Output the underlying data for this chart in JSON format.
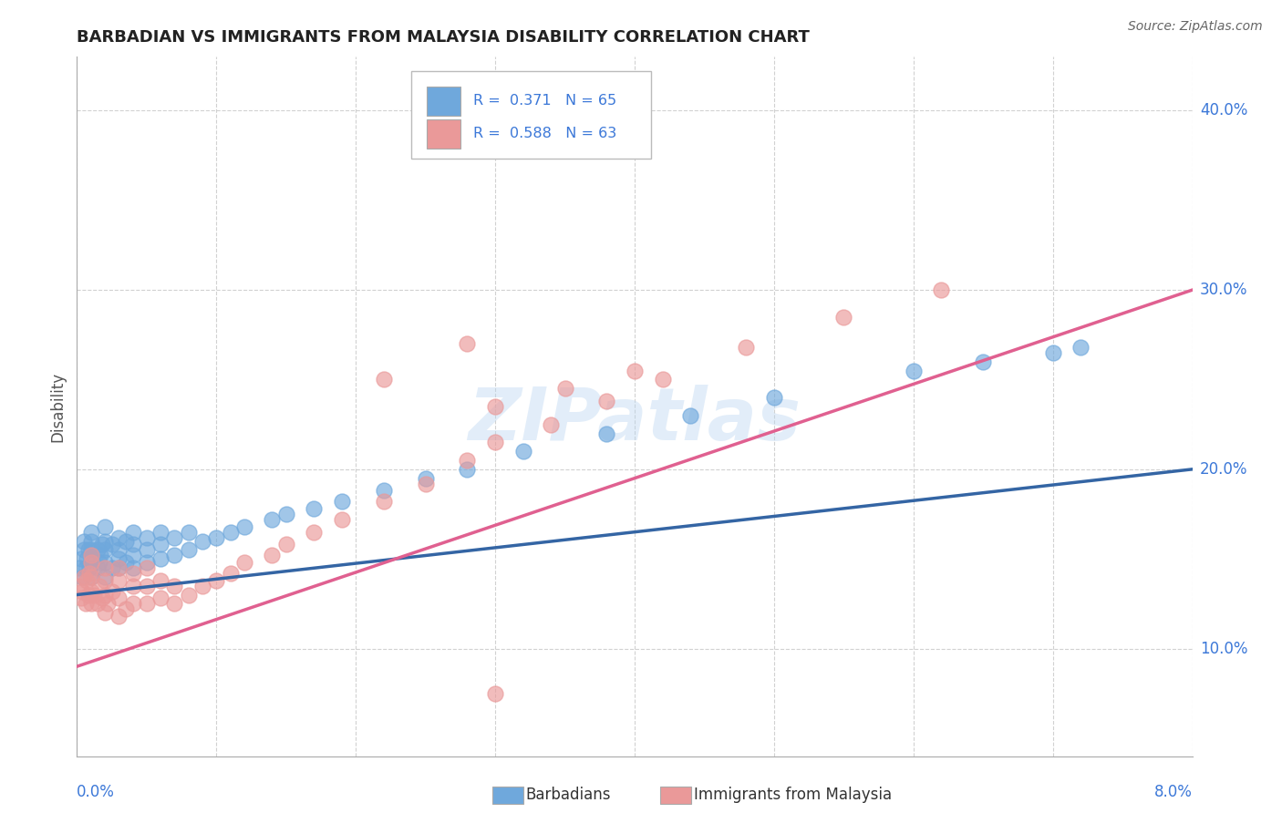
{
  "title": "BARBADIAN VS IMMIGRANTS FROM MALAYSIA DISABILITY CORRELATION CHART",
  "source": "Source: ZipAtlas.com",
  "ylabel": "Disability",
  "color_barbadian": "#6fa8dc",
  "color_malaysia": "#ea9999",
  "line_color_barbadian": "#3465a4",
  "line_color_malaysia": "#e06090",
  "watermark": "ZIPatlas",
  "xmin": 0.0,
  "xmax": 0.08,
  "ymin": 0.04,
  "ymax": 0.43,
  "yticks": [
    0.1,
    0.2,
    0.3,
    0.4
  ],
  "ytick_labels": [
    "10.0%",
    "20.0%",
    "30.0%",
    "40.0%"
  ],
  "blue_line_x0": 0.0,
  "blue_line_y0": 0.13,
  "blue_line_x1": 0.08,
  "blue_line_y1": 0.2,
  "pink_line_x0": 0.0,
  "pink_line_y0": 0.09,
  "pink_line_x1": 0.08,
  "pink_line_y1": 0.3,
  "barbadian_x": [
    0.0002,
    0.0003,
    0.0004,
    0.0005,
    0.0005,
    0.0006,
    0.0007,
    0.0008,
    0.0009,
    0.001,
    0.001,
    0.001,
    0.001,
    0.001,
    0.0015,
    0.0015,
    0.0016,
    0.0017,
    0.0018,
    0.002,
    0.002,
    0.002,
    0.002,
    0.002,
    0.0025,
    0.0025,
    0.003,
    0.003,
    0.003,
    0.003,
    0.0035,
    0.0035,
    0.004,
    0.004,
    0.004,
    0.004,
    0.005,
    0.005,
    0.005,
    0.006,
    0.006,
    0.006,
    0.007,
    0.007,
    0.008,
    0.008,
    0.009,
    0.01,
    0.011,
    0.012,
    0.014,
    0.015,
    0.017,
    0.019,
    0.022,
    0.025,
    0.028,
    0.032,
    0.038,
    0.044,
    0.05,
    0.06,
    0.065,
    0.07,
    0.072
  ],
  "barbadian_y": [
    0.145,
    0.15,
    0.14,
    0.155,
    0.16,
    0.145,
    0.15,
    0.155,
    0.145,
    0.14,
    0.15,
    0.155,
    0.16,
    0.165,
    0.145,
    0.155,
    0.148,
    0.152,
    0.158,
    0.14,
    0.148,
    0.155,
    0.16,
    0.168,
    0.145,
    0.158,
    0.145,
    0.15,
    0.155,
    0.162,
    0.148,
    0.16,
    0.145,
    0.152,
    0.158,
    0.165,
    0.148,
    0.155,
    0.162,
    0.15,
    0.158,
    0.165,
    0.152,
    0.162,
    0.155,
    0.165,
    0.16,
    0.162,
    0.165,
    0.168,
    0.172,
    0.175,
    0.178,
    0.182,
    0.188,
    0.195,
    0.2,
    0.21,
    0.22,
    0.23,
    0.24,
    0.255,
    0.26,
    0.265,
    0.268
  ],
  "malaysia_x": [
    0.0002,
    0.0003,
    0.0004,
    0.0005,
    0.0006,
    0.0007,
    0.0008,
    0.0009,
    0.001,
    0.001,
    0.001,
    0.001,
    0.001,
    0.0012,
    0.0015,
    0.0016,
    0.0018,
    0.002,
    0.002,
    0.002,
    0.002,
    0.0022,
    0.0025,
    0.003,
    0.003,
    0.003,
    0.003,
    0.0035,
    0.004,
    0.004,
    0.004,
    0.005,
    0.005,
    0.005,
    0.006,
    0.006,
    0.007,
    0.007,
    0.008,
    0.009,
    0.01,
    0.011,
    0.012,
    0.014,
    0.015,
    0.017,
    0.019,
    0.022,
    0.025,
    0.028,
    0.03,
    0.034,
    0.038,
    0.042,
    0.048,
    0.055,
    0.062,
    0.03,
    0.035,
    0.04,
    0.022,
    0.028,
    0.03
  ],
  "malaysia_y": [
    0.135,
    0.128,
    0.132,
    0.14,
    0.125,
    0.138,
    0.13,
    0.142,
    0.125,
    0.132,
    0.14,
    0.148,
    0.152,
    0.13,
    0.125,
    0.135,
    0.128,
    0.12,
    0.13,
    0.138,
    0.145,
    0.125,
    0.132,
    0.118,
    0.128,
    0.138,
    0.145,
    0.122,
    0.125,
    0.135,
    0.142,
    0.125,
    0.135,
    0.145,
    0.128,
    0.138,
    0.125,
    0.135,
    0.13,
    0.135,
    0.138,
    0.142,
    0.148,
    0.152,
    0.158,
    0.165,
    0.172,
    0.182,
    0.192,
    0.205,
    0.215,
    0.225,
    0.238,
    0.25,
    0.268,
    0.285,
    0.3,
    0.235,
    0.245,
    0.255,
    0.25,
    0.27,
    0.075
  ]
}
